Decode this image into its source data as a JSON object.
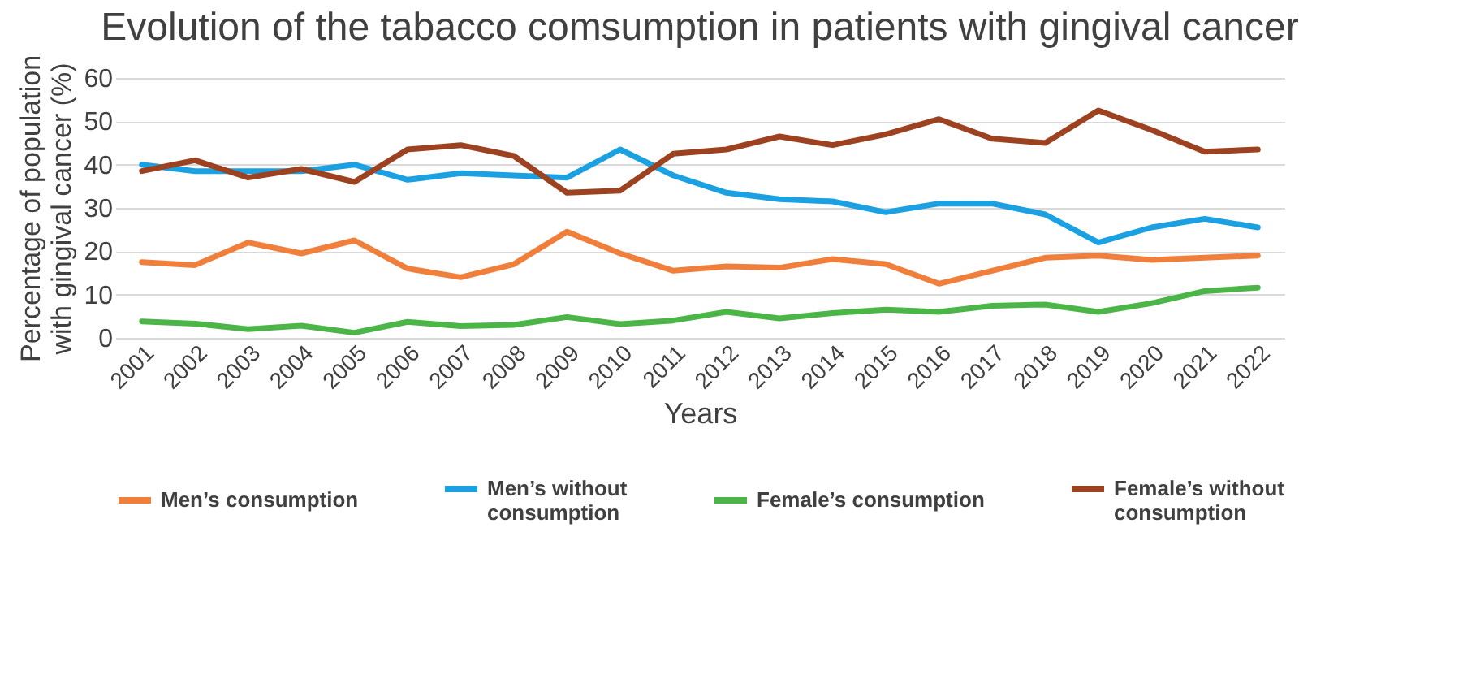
{
  "chart_data": {
    "type": "line",
    "title": "Evolution of the tabacco comsumption in patients with gingival cancer",
    "xlabel": "Years",
    "ylabel": "Percentage of population with gingival cancer (%)",
    "categories": [
      "2001",
      "2002",
      "2003",
      "2004",
      "2005",
      "2006",
      "2007",
      "2008",
      "2009",
      "2010",
      "2011",
      "2012",
      "2013",
      "2014",
      "2015",
      "2016",
      "2017",
      "2018",
      "2019",
      "2020",
      "2021",
      "2022"
    ],
    "series": [
      {
        "name": "Men’s consumption",
        "color": "#f07f3c",
        "values": [
          17.5,
          16.8,
          22,
          19.5,
          22.5,
          16,
          14,
          17,
          24.5,
          19.5,
          15.5,
          16.5,
          16.2,
          18.2,
          17,
          12.5,
          15.5,
          18.5,
          19,
          18,
          18.5,
          19
        ]
      },
      {
        "name": "Men’s without consumption",
        "color": "#1ba1e2",
        "values": [
          40,
          38.5,
          38.5,
          38.5,
          40,
          36.5,
          38,
          37.5,
          37,
          43.5,
          37.5,
          33.5,
          32,
          31.5,
          29,
          31,
          31,
          28.5,
          22,
          25.5,
          27.5,
          25.5
        ]
      },
      {
        "name": "Female’s consumption",
        "color": "#4cb548",
        "values": [
          3.8,
          3.3,
          2,
          2.8,
          1.2,
          3.7,
          2.7,
          3,
          4.8,
          3.2,
          4,
          6,
          4.5,
          5.7,
          6.5,
          6,
          7.4,
          7.7,
          6,
          8,
          10.8,
          11.6
        ]
      },
      {
        "name": "Female’s without consumption",
        "color": "#9c4221",
        "values": [
          38.5,
          41,
          37,
          39,
          36,
          43.5,
          44.5,
          42,
          33.5,
          34,
          42.5,
          43.5,
          46.5,
          44.5,
          47,
          50.5,
          46,
          45,
          52.5,
          48,
          43,
          43.5
        ]
      }
    ],
    "ylim": [
      0,
      60
    ],
    "yticks": [
      0,
      10,
      20,
      30,
      40,
      50,
      60
    ],
    "grid": "y",
    "legend": "bottom",
    "marker": "none",
    "line_style": "solid"
  }
}
